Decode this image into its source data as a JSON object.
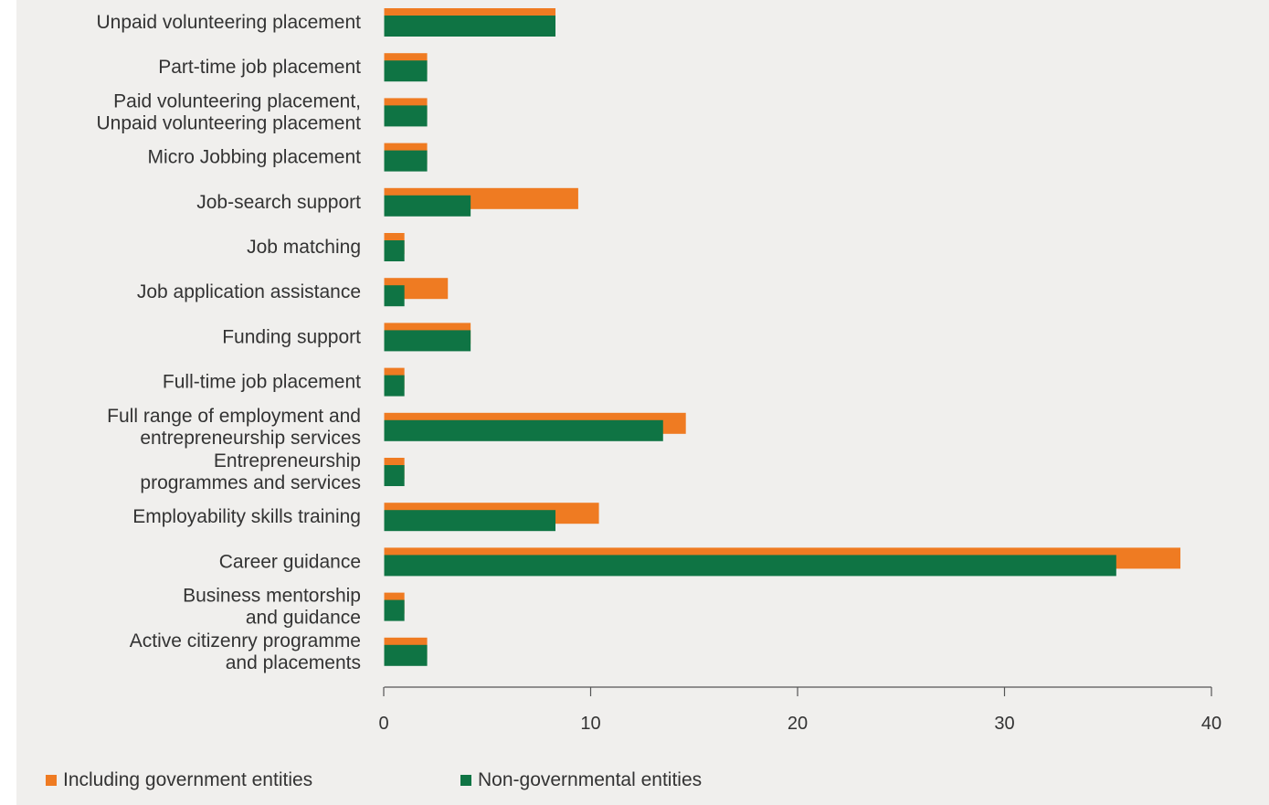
{
  "chart_data": {
    "type": "bar",
    "orientation": "horizontal",
    "categories": [
      "Unpaid volunteering placement",
      "Part-time job placement",
      "Paid volunteering placement,\nUnpaid volunteering placement",
      "Micro Jobbing placement",
      "Job-search support",
      "Job matching",
      "Job application assistance",
      "Funding support",
      "Full-time job placement",
      "Full range of employment and\nentrepreneurship services",
      "Entrepreneurship\nprogrammes and services",
      "Employability skills training",
      "Career guidance",
      "Business mentorship\nand guidance",
      "Active citizenry programme\nand placements"
    ],
    "series": [
      {
        "name": "Including government entities",
        "color": "#ef7b22",
        "values": [
          8.3,
          2.1,
          2.1,
          2.1,
          9.4,
          1.0,
          3.1,
          4.2,
          1.0,
          14.6,
          1.0,
          10.4,
          38.5,
          1.0,
          2.1
        ]
      },
      {
        "name": "Non-governmental entities",
        "color": "#0f7444",
        "values": [
          8.3,
          2.1,
          2.1,
          2.1,
          4.2,
          1.0,
          1.0,
          4.2,
          1.0,
          13.5,
          1.0,
          8.3,
          35.4,
          1.0,
          2.1
        ]
      }
    ],
    "xlim": [
      0,
      40
    ],
    "xticks": [
      0,
      10,
      20,
      30,
      40
    ],
    "xlabel": "",
    "ylabel": "",
    "grid": false,
    "legend_position": "bottom-left"
  }
}
